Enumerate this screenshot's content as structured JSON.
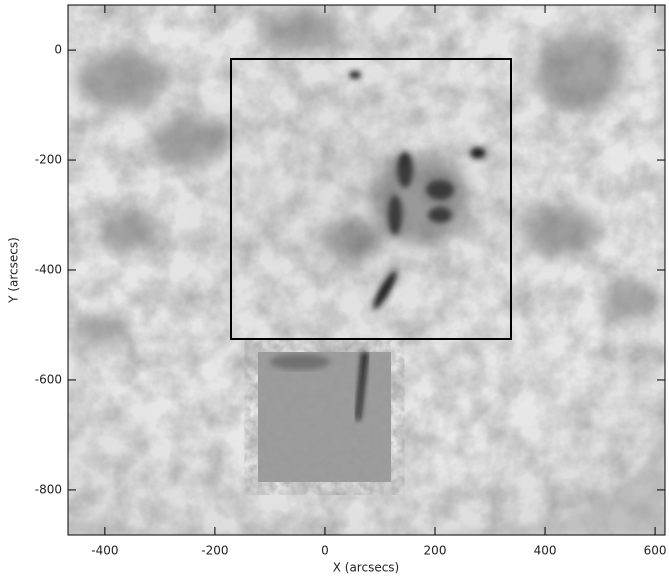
{
  "chart_data": {
    "type": "image",
    "x_label": "X (arcsecs)",
    "y_label": "Y (arcsecs)",
    "xlim": [
      -467,
      618
    ],
    "ylim": [
      -882,
      82
    ],
    "xticks": [
      -400,
      -200,
      0,
      200,
      400,
      600
    ],
    "yticks": [
      0,
      -200,
      -400,
      -600,
      -800
    ]
  }
}
